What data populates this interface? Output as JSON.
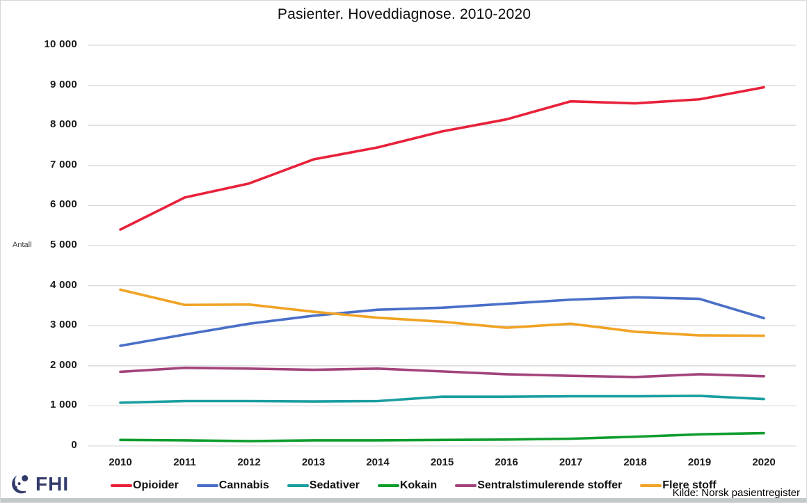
{
  "header": {
    "title": "Pasienter. Hoveddiagnose. 2010-2020"
  },
  "chart_data": {
    "type": "line",
    "title": "Pasienter. Hoveddiagnose. 2010-2020",
    "xlabel": "",
    "ylabel": "Antall",
    "ylim": [
      0,
      10000
    ],
    "ytick_step": 1000,
    "ytick_labels": [
      "0",
      "1 000",
      "2 000",
      "3 000",
      "4 000",
      "5 000",
      "6 000",
      "7 000",
      "8 000",
      "9 000",
      "10 000"
    ],
    "grid": true,
    "legend_position": "bottom",
    "x": [
      2010,
      2011,
      2012,
      2013,
      2014,
      2015,
      2016,
      2017,
      2018,
      2019,
      2020
    ],
    "series": [
      {
        "name": "Opioider",
        "color": "#e8213a",
        "values": [
          5400,
          6200,
          6550,
          7150,
          7450,
          7850,
          8150,
          8600,
          8550,
          8650,
          8950
        ]
      },
      {
        "name": "Cannabis",
        "color": "#4a6fc8",
        "values": [
          2500,
          2780,
          3050,
          3250,
          3400,
          3450,
          3550,
          3650,
          3710,
          3670,
          3190
        ]
      },
      {
        "name": "Sedativer",
        "color": "#1a9ea0",
        "values": [
          1080,
          1120,
          1120,
          1110,
          1120,
          1230,
          1230,
          1240,
          1240,
          1250,
          1170
        ]
      },
      {
        "name": "Kokain",
        "color": "#0f9d2e",
        "values": [
          150,
          140,
          120,
          140,
          140,
          150,
          160,
          180,
          230,
          290,
          320
        ]
      },
      {
        "name": "Sentralstimulerende stoffer",
        "color": "#a3437c",
        "values": [
          1850,
          1950,
          1930,
          1900,
          1930,
          1860,
          1790,
          1750,
          1720,
          1790,
          1740
        ]
      },
      {
        "name": "Flere stoff",
        "color": "#f0a325",
        "values": [
          3900,
          3520,
          3530,
          3350,
          3200,
          3100,
          2950,
          3050,
          2850,
          2760,
          2750
        ]
      }
    ]
  },
  "footer": {
    "source": "Kilde: Norsk pasientregister",
    "logo_text": "FHI"
  },
  "colors": {
    "gridline": "#dadada",
    "logo_navy": "#333b6a",
    "bottom_bar": "#c3c8cb"
  }
}
